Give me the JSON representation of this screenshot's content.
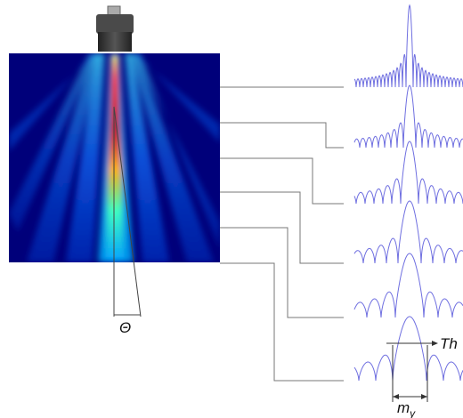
{
  "labels": {
    "theta": "Θ",
    "threshold": "Th",
    "width": {
      "main": "m",
      "subscript": "y"
    }
  }
}
